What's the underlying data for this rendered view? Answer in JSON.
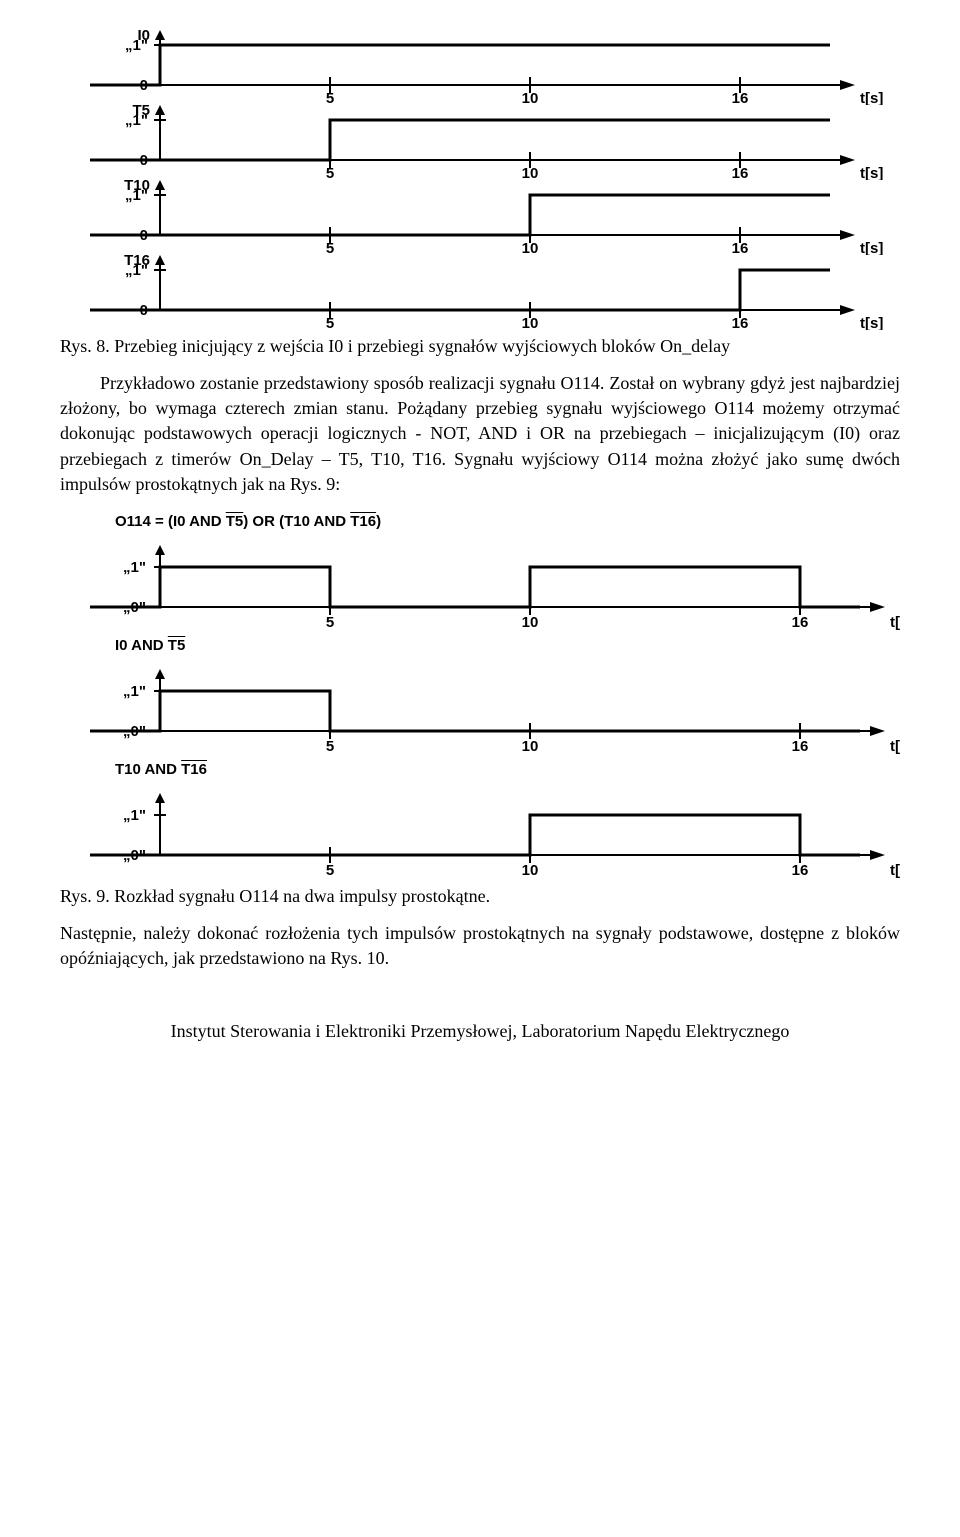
{
  "topCharts": {
    "labels": [
      "I0",
      "T5",
      "T10",
      "T16"
    ],
    "highLabel": "„1\"",
    "lowLabel": "0",
    "ticks": [
      5,
      10,
      16
    ],
    "tickPositions": [
      270,
      470,
      680
    ],
    "tUnit": "t[s]",
    "yAxisX": 100,
    "xEnd": 770,
    "highY": 15,
    "lowY": 55,
    "riseX": {
      "I0": 100,
      "T5": 270,
      "T10": 470,
      "T16": 680
    }
  },
  "caption1": "Rys. 8. Przebieg inicjujący z wejścia I0 i przebiegi sygnałów wyjściowych bloków On_delay",
  "paragraph1": "Przykładowo zostanie przedstawiony sposób realizacji sygnału O114. Został on wybrany gdyż jest najbardziej złożony, bo wymaga czterech zmian stanu. Pożądany przebieg sygnału wyjściowego O114 możemy otrzymać dokonując podstawowych operacji logicznych - NOT, AND i OR na przebiegach – inicjalizującym (I0) oraz przebiegach z timerów On_Delay – T5, T10, T16. Sygnału wyjściowy O114 można złożyć jako sumę dwóch impulsów prostokątnych jak na Rys. 9:",
  "bottomCharts": {
    "highLabel": "„1\"",
    "lowLabel": "„0\"",
    "ticks": [
      5,
      10,
      16
    ],
    "tickPositions": [
      270,
      470,
      740
    ],
    "tUnit": "t[s]",
    "yAxisX": 100,
    "xEnd": 800,
    "highY": 15,
    "lowY": 55,
    "signals": [
      {
        "label_html": "O114 = (I0 AND <span class='overline'>T5</span>) OR (T10 AND <span class='overline'>T16</span>)",
        "pulses": [
          [
            100,
            270
          ],
          [
            470,
            740
          ]
        ]
      },
      {
        "label_html": "I0 AND <span class='overline'>T5</span>",
        "pulses": [
          [
            100,
            270
          ]
        ]
      },
      {
        "label_html": "T10 AND <span class='overline'>T16</span>",
        "pulses": [
          [
            470,
            740
          ]
        ]
      }
    ]
  },
  "caption2": "Rys. 9. Rozkład sygnału O114 na dwa impulsy prostokątne.",
  "paragraph2": "Następnie, należy dokonać rozłożenia tych impulsów prostokątnych na sygnały podstawowe, dostępne z bloków opóźniających, jak przedstawiono na Rys. 10.",
  "footer": "Instytut Sterowania i Elektroniki Przemysłowej, Laboratorium Napędu Elektrycznego"
}
